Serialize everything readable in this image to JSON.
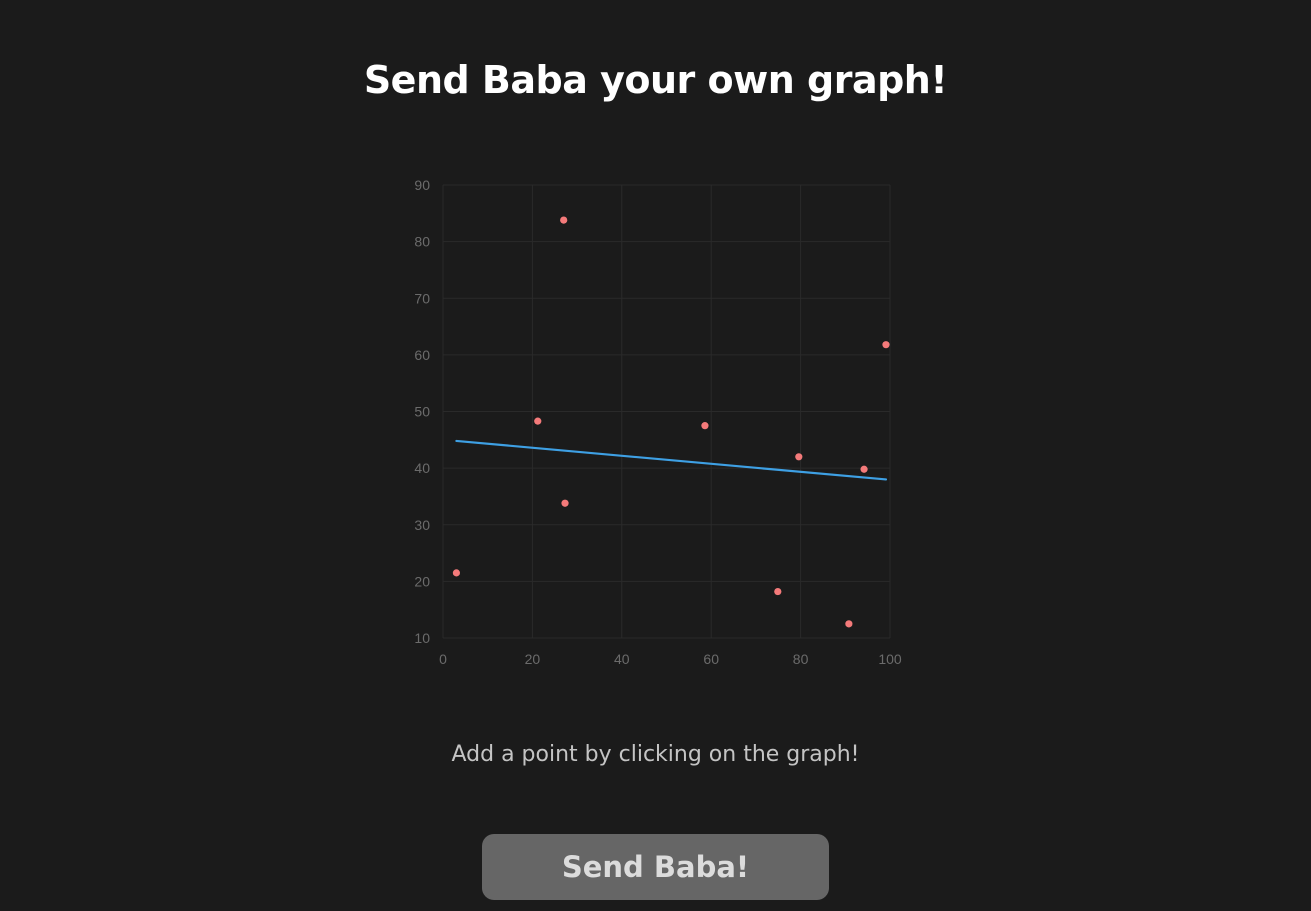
{
  "header": {
    "title": "Send Baba your own graph!"
  },
  "instructions": {
    "hint": "Add a point by clicking on the graph!"
  },
  "actions": {
    "send_label": "Send Baba!"
  },
  "colors": {
    "background": "#1b1b1b",
    "point": "#f47a7a",
    "trendline": "#3ea0e4",
    "grid": "#2a2a2a",
    "tick_text": "#6b6b6b",
    "button_bg": "#666666"
  },
  "chart_data": {
    "type": "scatter",
    "title": "",
    "xlabel": "",
    "ylabel": "",
    "xlim": [
      0,
      100
    ],
    "ylim": [
      10,
      90
    ],
    "xticks": [
      0,
      20,
      40,
      60,
      80,
      100
    ],
    "yticks": [
      10,
      20,
      30,
      40,
      50,
      60,
      70,
      80,
      90
    ],
    "grid": true,
    "legend": "none",
    "points": [
      {
        "x": 3,
        "y": 21.5
      },
      {
        "x": 21.2,
        "y": 48.3
      },
      {
        "x": 27,
        "y": 83.8
      },
      {
        "x": 27.3,
        "y": 33.8
      },
      {
        "x": 58.6,
        "y": 47.5
      },
      {
        "x": 74.9,
        "y": 18.2
      },
      {
        "x": 79.6,
        "y": 42
      },
      {
        "x": 90.8,
        "y": 12.5
      },
      {
        "x": 94.2,
        "y": 39.8
      },
      {
        "x": 99.1,
        "y": 61.8
      }
    ],
    "trendline": {
      "type": "linear-regression",
      "from": {
        "x": 3,
        "y": 44.8
      },
      "to": {
        "x": 99.1,
        "y": 38
      }
    }
  }
}
